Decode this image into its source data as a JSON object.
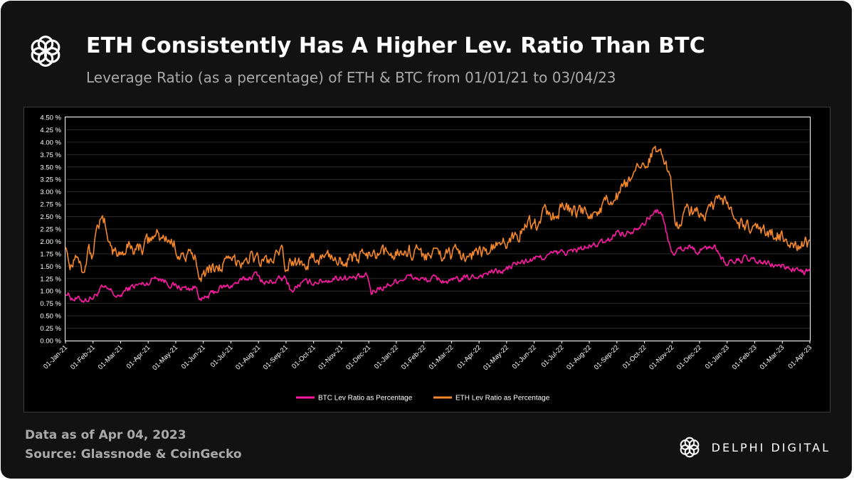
{
  "header": {
    "logo_icon": "delphi-knot-icon",
    "title": "ETH Consistently Has A Higher Lev. Ratio Than BTC",
    "subtitle": "Leverage Ratio (as a percentage) of ETH & BTC from 01/01/21 to 03/04/23"
  },
  "footer": {
    "date_note": "Data as of Apr 04, 2023",
    "source": "Source: Glassnode & CoinGecko",
    "brand_icon": "delphi-knot-icon",
    "brand_name": "DELPHI DIGITAL"
  },
  "colors": {
    "background": "#121212",
    "plot_background": "#000000",
    "btc": "#ff1aa3",
    "eth": "#f5882a",
    "text": "#ffffff",
    "muted": "#a9a9a9"
  },
  "chart_data": {
    "type": "line",
    "title": "",
    "xlabel": "",
    "ylabel": "",
    "ylim": [
      0,
      4.5
    ],
    "yticks": [
      0,
      0.25,
      0.5,
      0.75,
      1.0,
      1.25,
      1.5,
      1.75,
      2.0,
      2.25,
      2.5,
      2.75,
      3.0,
      3.25,
      3.5,
      3.75,
      4.0,
      4.25,
      4.5
    ],
    "ytick_labels": [
      "0.00 %",
      "0.25 %",
      "0.50 %",
      "0.75 %",
      "1.00 %",
      "1.25 %",
      "1.50 %",
      "1.75 %",
      "2.00 %",
      "2.25 %",
      "2.50 %",
      "2.75 %",
      "3.00 %",
      "3.25 %",
      "3.50 %",
      "3.75 %",
      "4.00 %",
      "4.25 %",
      "4.50 %"
    ],
    "x_tick_labels": [
      "01-Jan-21",
      "01-Feb-21",
      "01-Mar-21",
      "01-Apr-21",
      "01-May-21",
      "01-Jun-21",
      "01-Jul-21",
      "01-Aug-21",
      "01-Sep-21",
      "01-Oct-21",
      "01-Nov-21",
      "01-Dec-21",
      "01-Jan-22",
      "01-Feb-22",
      "01-Mar-22",
      "01-Apr-22",
      "01-May-22",
      "01-Jun-22",
      "01-Jul-22",
      "01-Aug-22",
      "01-Sep-22",
      "01-Oct-22",
      "01-Nov-22",
      "01-Dec-22",
      "01-Jan-23",
      "01-Feb-23",
      "01-Mar-23",
      "01-Apr-23"
    ],
    "x_unit": "days since 01-Jan-21",
    "x_range": [
      0,
      823
    ],
    "legend_position": "bottom-center",
    "series": [
      {
        "name": "BTC Lev Ratio as Percentage",
        "color": "#ff1aa3",
        "x": [
          0,
          8,
          20,
          31,
          40,
          50,
          59,
          65,
          75,
          90,
          100,
          105,
          120,
          135,
          145,
          150,
          155,
          170,
          181,
          195,
          212,
          220,
          230,
          243,
          250,
          260,
          273,
          290,
          304,
          320,
          334,
          338,
          345,
          355,
          365,
          380,
          396,
          410,
          424,
          440,
          455,
          470,
          485,
          497,
          510,
          520,
          540,
          560,
          580,
          600,
          610,
          620,
          640,
          650,
          655,
          660,
          670,
          680,
          690,
          700,
          712,
          720,
          730,
          740,
          750,
          760,
          775,
          790,
          805,
          815,
          823
        ],
        "y": [
          0.98,
          0.85,
          0.82,
          0.87,
          1.05,
          1.0,
          0.85,
          1.0,
          1.1,
          1.15,
          1.3,
          1.25,
          1.1,
          1.05,
          1.07,
          0.8,
          0.85,
          1.05,
          1.1,
          1.2,
          1.35,
          1.15,
          1.2,
          1.25,
          1.0,
          1.15,
          1.18,
          1.22,
          1.28,
          1.25,
          1.3,
          0.95,
          1.05,
          1.1,
          1.2,
          1.3,
          1.22,
          1.25,
          1.18,
          1.25,
          1.3,
          1.38,
          1.4,
          1.55,
          1.6,
          1.65,
          1.75,
          1.8,
          1.9,
          2.0,
          2.2,
          2.15,
          2.4,
          2.55,
          2.65,
          2.5,
          1.75,
          1.85,
          1.9,
          1.8,
          1.9,
          1.85,
          1.55,
          1.6,
          1.65,
          1.6,
          1.55,
          1.5,
          1.45,
          1.38,
          1.4
        ]
      },
      {
        "name": "ETH Lev Ratio as Percentage",
        "color": "#f5882a",
        "x": [
          0,
          5,
          12,
          20,
          25,
          31,
          35,
          45,
          52,
          59,
          70,
          80,
          90,
          100,
          105,
          115,
          130,
          140,
          145,
          150,
          160,
          170,
          181,
          195,
          205,
          212,
          225,
          240,
          243,
          250,
          260,
          273,
          290,
          304,
          320,
          334,
          340,
          350,
          365,
          380,
          396,
          410,
          424,
          440,
          455,
          470,
          485,
          497,
          505,
          512,
          520,
          528,
          540,
          550,
          560,
          575,
          590,
          600,
          610,
          620,
          630,
          640,
          650,
          658,
          662,
          668,
          675,
          685,
          700,
          712,
          720,
          730,
          740,
          755,
          770,
          785,
          795,
          805,
          815,
          823
        ],
        "y": [
          2.0,
          1.5,
          1.8,
          1.4,
          1.85,
          1.7,
          2.45,
          2.3,
          1.8,
          1.75,
          1.9,
          1.85,
          1.95,
          2.15,
          2.05,
          2.05,
          1.7,
          1.68,
          1.6,
          1.35,
          1.45,
          1.5,
          1.55,
          1.65,
          1.7,
          1.62,
          1.6,
          1.72,
          1.5,
          1.55,
          1.6,
          1.62,
          1.7,
          1.65,
          1.62,
          1.75,
          1.65,
          1.7,
          1.8,
          1.82,
          1.75,
          1.72,
          1.75,
          1.72,
          1.78,
          1.82,
          1.95,
          2.1,
          2.25,
          2.4,
          2.3,
          2.6,
          2.5,
          2.7,
          2.6,
          2.55,
          2.6,
          2.8,
          2.9,
          3.1,
          3.3,
          3.6,
          3.8,
          4.05,
          3.6,
          3.4,
          2.2,
          2.65,
          2.55,
          2.6,
          2.75,
          2.85,
          2.4,
          2.25,
          2.2,
          2.15,
          2.1,
          1.95,
          1.95,
          1.95
        ]
      }
    ]
  }
}
